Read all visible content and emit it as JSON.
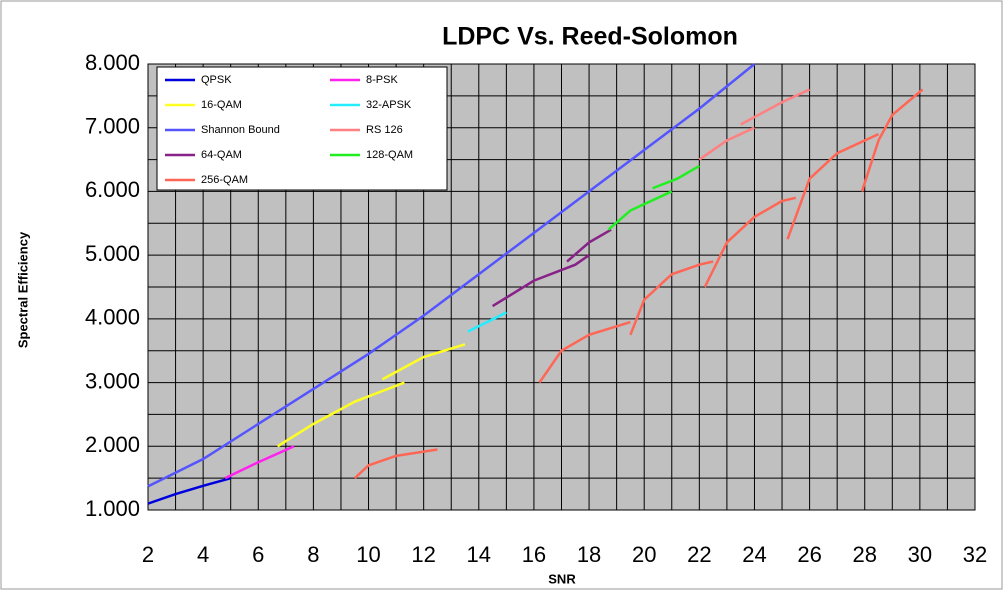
{
  "chart_data": {
    "type": "line",
    "title": "LDPC Vs. Reed-Solomon",
    "x_label": "SNR",
    "y_label": "Spectral Efficiency",
    "xlim": [
      2,
      32
    ],
    "xticks": [
      2,
      4,
      6,
      8,
      10,
      12,
      14,
      16,
      18,
      20,
      22,
      24,
      26,
      28,
      30,
      32
    ],
    "ylim": [
      1,
      8
    ],
    "yticks": [
      {
        "value": 1,
        "label": "1.000"
      },
      {
        "value": 2,
        "label": "2.000"
      },
      {
        "value": 3,
        "label": "3.000"
      },
      {
        "value": 4,
        "label": "4.000"
      },
      {
        "value": 5,
        "label": "5.000"
      },
      {
        "value": 6,
        "label": "6.000"
      },
      {
        "value": 7,
        "label": "7.000"
      },
      {
        "value": 8,
        "label": "8.000"
      }
    ],
    "grid": true,
    "legend": "upper left",
    "series": [
      {
        "name": "QPSK",
        "color": "#0000dd",
        "x": [
          2,
          3,
          4,
          5
        ],
        "values": [
          1.1,
          1.25,
          1.38,
          1.5
        ]
      },
      {
        "name": "8-PSK",
        "color": "#ff22ee",
        "x": [
          4.8,
          6,
          7.3
        ],
        "values": [
          1.5,
          1.75,
          2.0
        ]
      },
      {
        "name": "16-QAM",
        "color": "#ffff22",
        "x": [
          6.7,
          8,
          9.5,
          11.3,
          null,
          10.5,
          12,
          13.5
        ],
        "values": [
          2.0,
          2.35,
          2.7,
          3.0,
          null,
          3.05,
          3.4,
          3.6
        ]
      },
      {
        "name": "32-APSK",
        "color": "#22eeff",
        "x": [
          13.6,
          15
        ],
        "values": [
          3.8,
          4.1
        ]
      },
      {
        "name": "Shannon Bound",
        "color": "#5555ff",
        "x": [
          2,
          4,
          6,
          8,
          10,
          12,
          14,
          16,
          18,
          20,
          22,
          24
        ],
        "values": [
          1.37,
          1.8,
          2.35,
          2.9,
          3.45,
          4.05,
          4.7,
          5.35,
          6.0,
          6.65,
          7.3,
          8.0
        ]
      },
      {
        "name": "RS 126",
        "color": "#ff8080",
        "x": [
          22,
          23,
          24,
          null,
          23.5,
          25,
          26
        ],
        "values": [
          6.5,
          6.8,
          7.0,
          null,
          7.05,
          7.4,
          7.6
        ]
      },
      {
        "name": "64-QAM",
        "color": "#882288",
        "x": [
          14.5,
          16,
          17.5,
          18,
          null,
          17.2,
          18,
          18.8
        ],
        "values": [
          4.2,
          4.6,
          4.85,
          5.0,
          null,
          4.9,
          5.2,
          5.4
        ]
      },
      {
        "name": "128-QAM",
        "color": "#22ee22",
        "x": [
          18.7,
          19.5,
          21,
          null,
          20.3,
          21.2,
          22
        ],
        "values": [
          5.4,
          5.7,
          6.0,
          null,
          6.05,
          6.2,
          6.4
        ]
      },
      {
        "name": "256-QAM",
        "color": "#ff6655",
        "x": [
          9.5,
          10,
          11,
          12.5,
          null,
          16.2,
          17,
          18,
          19.5,
          null,
          19.5,
          20,
          21,
          22,
          22.5,
          null,
          22.2,
          23,
          24,
          25,
          25.5,
          null,
          25.2,
          26,
          27,
          28.5,
          null,
          27.9,
          28.5,
          29,
          30.1
        ],
        "values": [
          1.5,
          1.7,
          1.85,
          1.95,
          null,
          3.0,
          3.5,
          3.75,
          3.95,
          null,
          3.75,
          4.3,
          4.7,
          4.85,
          4.9,
          null,
          4.5,
          5.2,
          5.6,
          5.85,
          5.9,
          null,
          5.25,
          6.2,
          6.6,
          6.9,
          null,
          6.0,
          6.8,
          7.2,
          7.6
        ]
      }
    ]
  }
}
